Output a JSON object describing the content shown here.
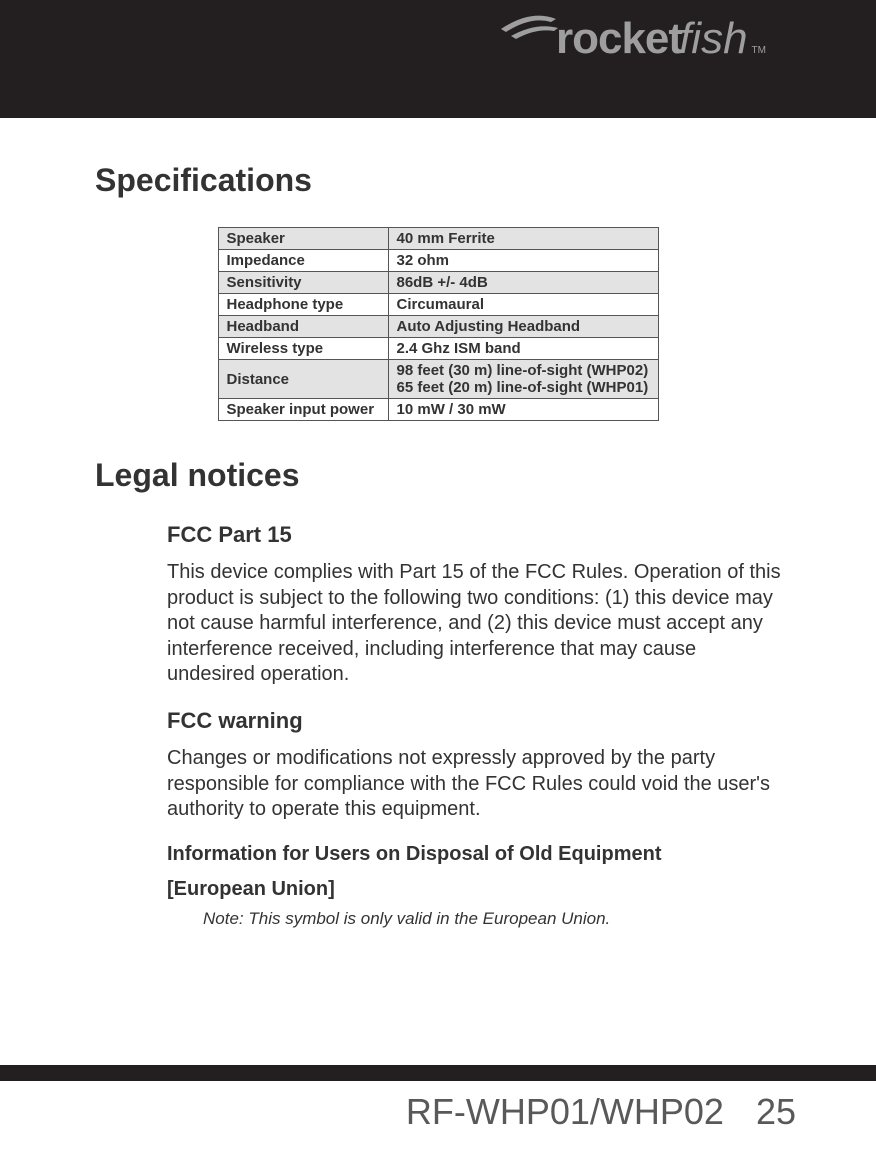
{
  "header": {
    "brand": "rocket",
    "suffix": "fish",
    "tm": "TM"
  },
  "sections": {
    "spec_heading": "Specifications",
    "legal_heading": "Legal notices",
    "fcc_part15_heading": "FCC Part 15",
    "fcc_part15_body": "This device complies with Part 15 of the FCC Rules. Operation of this product is subject to the following two conditions: (1) this device may not cause harmful interference, and (2) this device must accept any interference received, including interference that may cause undesired operation.",
    "fcc_warning_heading": "FCC warning",
    "fcc_warning_body": "Changes or modifications not expressly approved by the party responsible for compliance with the FCC Rules could void the user's authority to operate this equipment.",
    "disposal_heading": "Information for Users on Disposal of Old Equipment",
    "eu_bracket_open": "[",
    "eu_label": "European Union",
    "eu_bracket_close": "]",
    "eu_note": "Note: This symbol is only valid in the European Union."
  },
  "spec_table": {
    "rows": [
      {
        "label": "Speaker",
        "value": "40 mm Ferrite",
        "shade": true
      },
      {
        "label": "Impedance",
        "value": "32 ohm",
        "shade": false
      },
      {
        "label": "Sensitivity",
        "value": "86dB +/- 4dB",
        "shade": true
      },
      {
        "label": "Headphone type",
        "value": "Circumaural",
        "shade": false
      },
      {
        "label": "Headband",
        "value": "Auto Adjusting Headband",
        "shade": true
      },
      {
        "label": "Wireless type",
        "value": "2.4 Ghz ISM band",
        "shade": false
      },
      {
        "label": "Distance",
        "value": "98 feet (30 m) line-of-sight (WHP02)\n65 feet (20 m) line-of-sight (WHP01)",
        "shade": true
      },
      {
        "label": "Speaker input power",
        "value": "10 mW / 30 mW",
        "shade": false
      }
    ]
  },
  "footer": {
    "model": "RF-WHP01/WHP02",
    "page": "25"
  },
  "colors": {
    "band": "#231f20",
    "logo": "#9e9e9e",
    "text": "#333333",
    "footer_text": "#595959",
    "shade": "#e3e3e3",
    "border": "#555555"
  }
}
